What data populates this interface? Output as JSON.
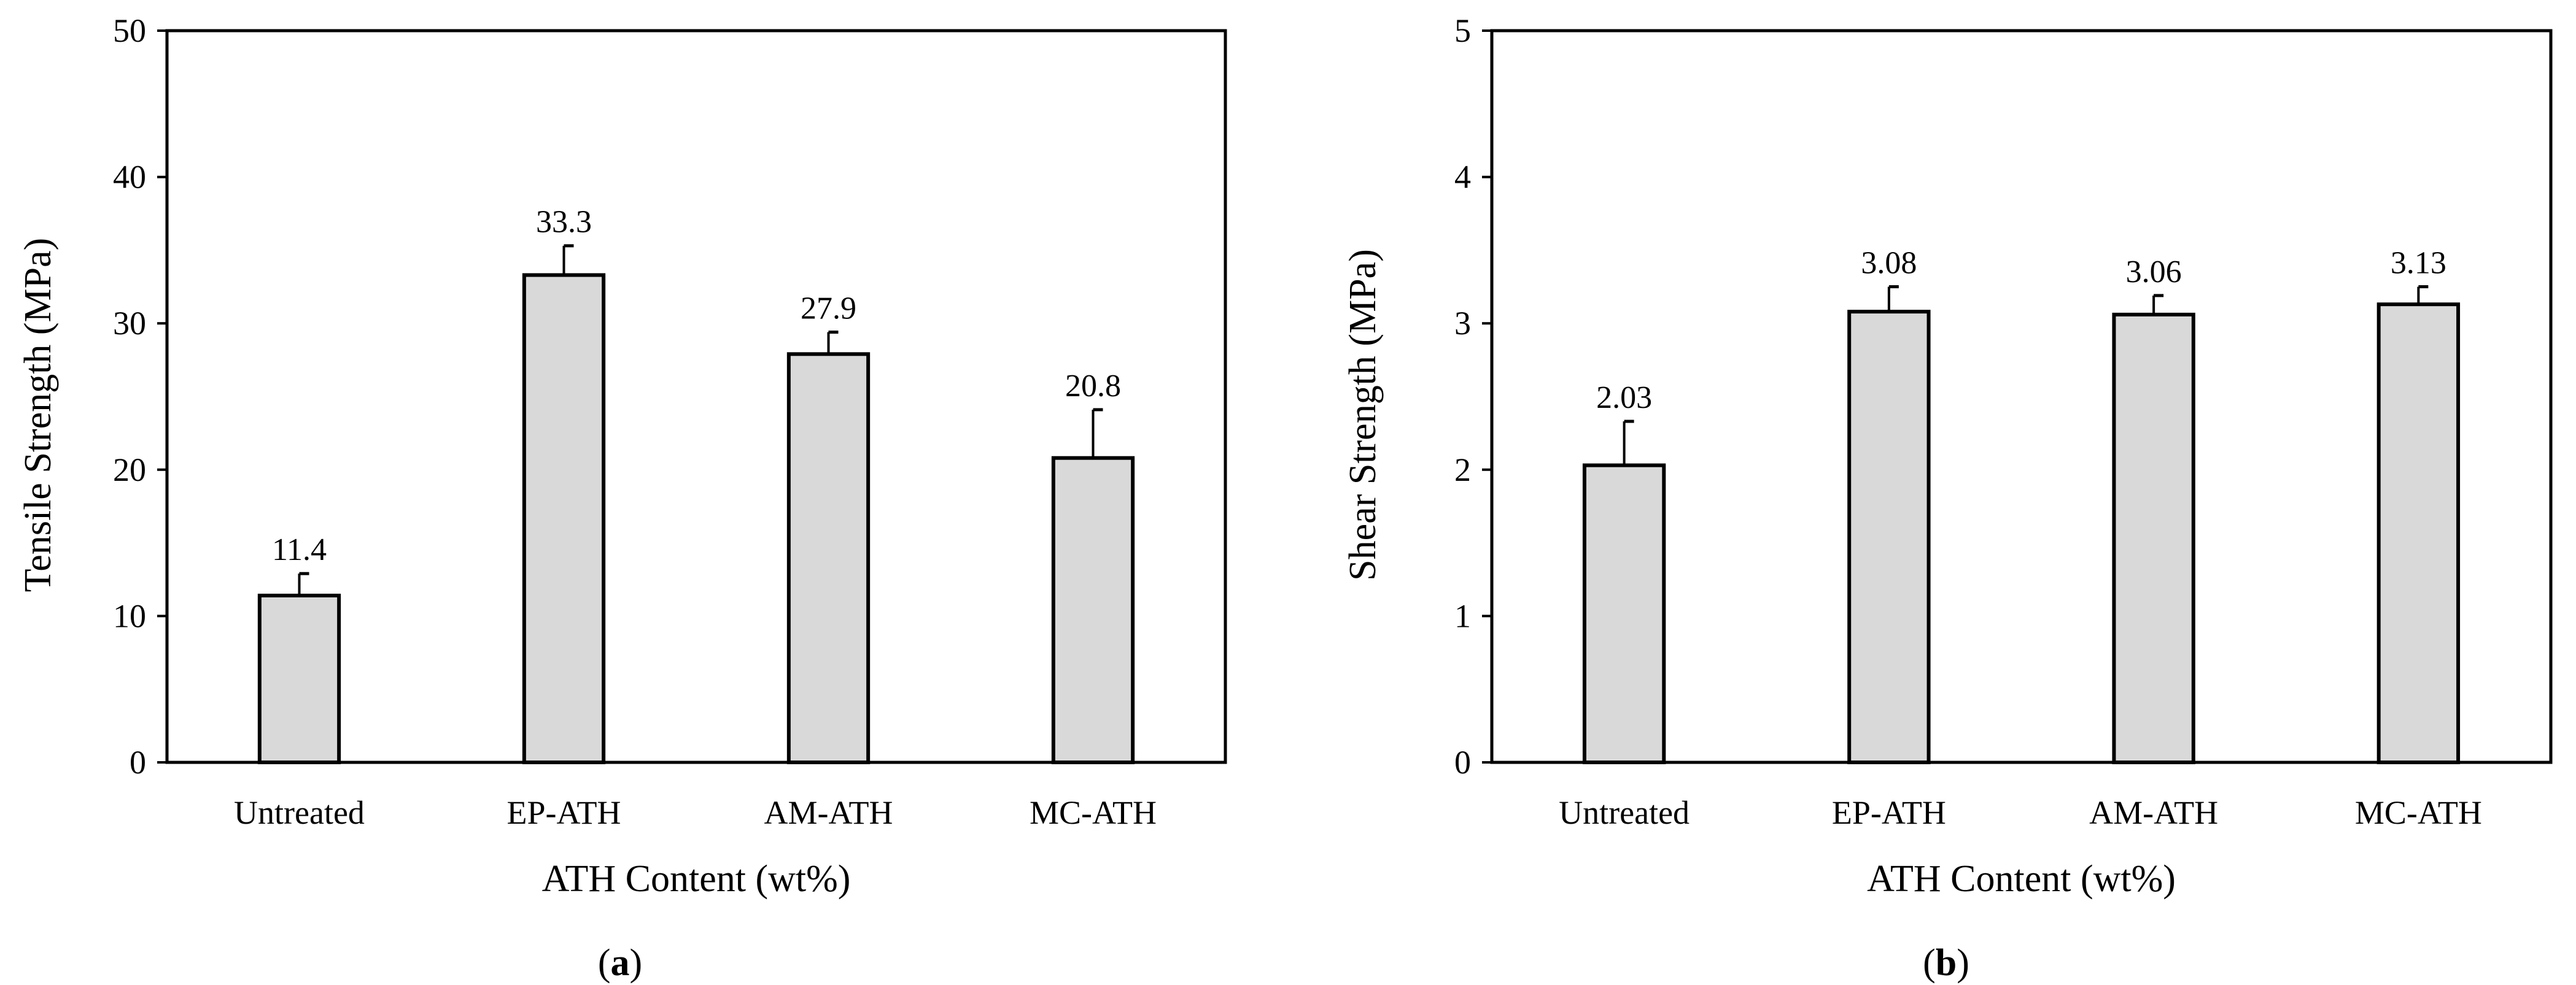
{
  "figure": {
    "panel_labels": [
      {
        "open": "(",
        "letter": "a",
        "close": ")"
      },
      {
        "open": "(",
        "letter": "b",
        "close": ")"
      }
    ]
  },
  "chart_data": [
    {
      "type": "bar",
      "title": "",
      "categories": [
        "Untreated",
        "EP-ATH",
        "AM-ATH",
        "MC-ATH"
      ],
      "values": [
        11.4,
        33.3,
        27.9,
        20.8
      ],
      "value_labels": [
        "11.4",
        "33.3",
        "27.9",
        "20.8"
      ],
      "error_upper": [
        1.5,
        2.0,
        1.5,
        3.3
      ],
      "xlabel": "ATH Content (wt%)",
      "ylabel": "Tensile Strength (MPa)",
      "ylim": [
        0,
        50
      ],
      "yticks": [
        0,
        10,
        20,
        30,
        40,
        50
      ],
      "grid": false,
      "bar_color": "#d9d9d9",
      "edge_color": "#000000"
    },
    {
      "type": "bar",
      "title": "",
      "categories": [
        "Untreated",
        "EP-ATH",
        "AM-ATH",
        "MC-ATH"
      ],
      "values": [
        2.03,
        3.08,
        3.06,
        3.13
      ],
      "value_labels": [
        "2.03",
        "3.08",
        "3.06",
        "3.13"
      ],
      "error_upper": [
        0.3,
        0.17,
        0.13,
        0.12
      ],
      "xlabel": "ATH Content (wt%)",
      "ylabel": "Shear Strength (MPa)",
      "ylim": [
        0,
        5
      ],
      "yticks": [
        0,
        1,
        2,
        3,
        4,
        5
      ],
      "grid": false,
      "bar_color": "#d9d9d9",
      "edge_color": "#000000"
    }
  ]
}
